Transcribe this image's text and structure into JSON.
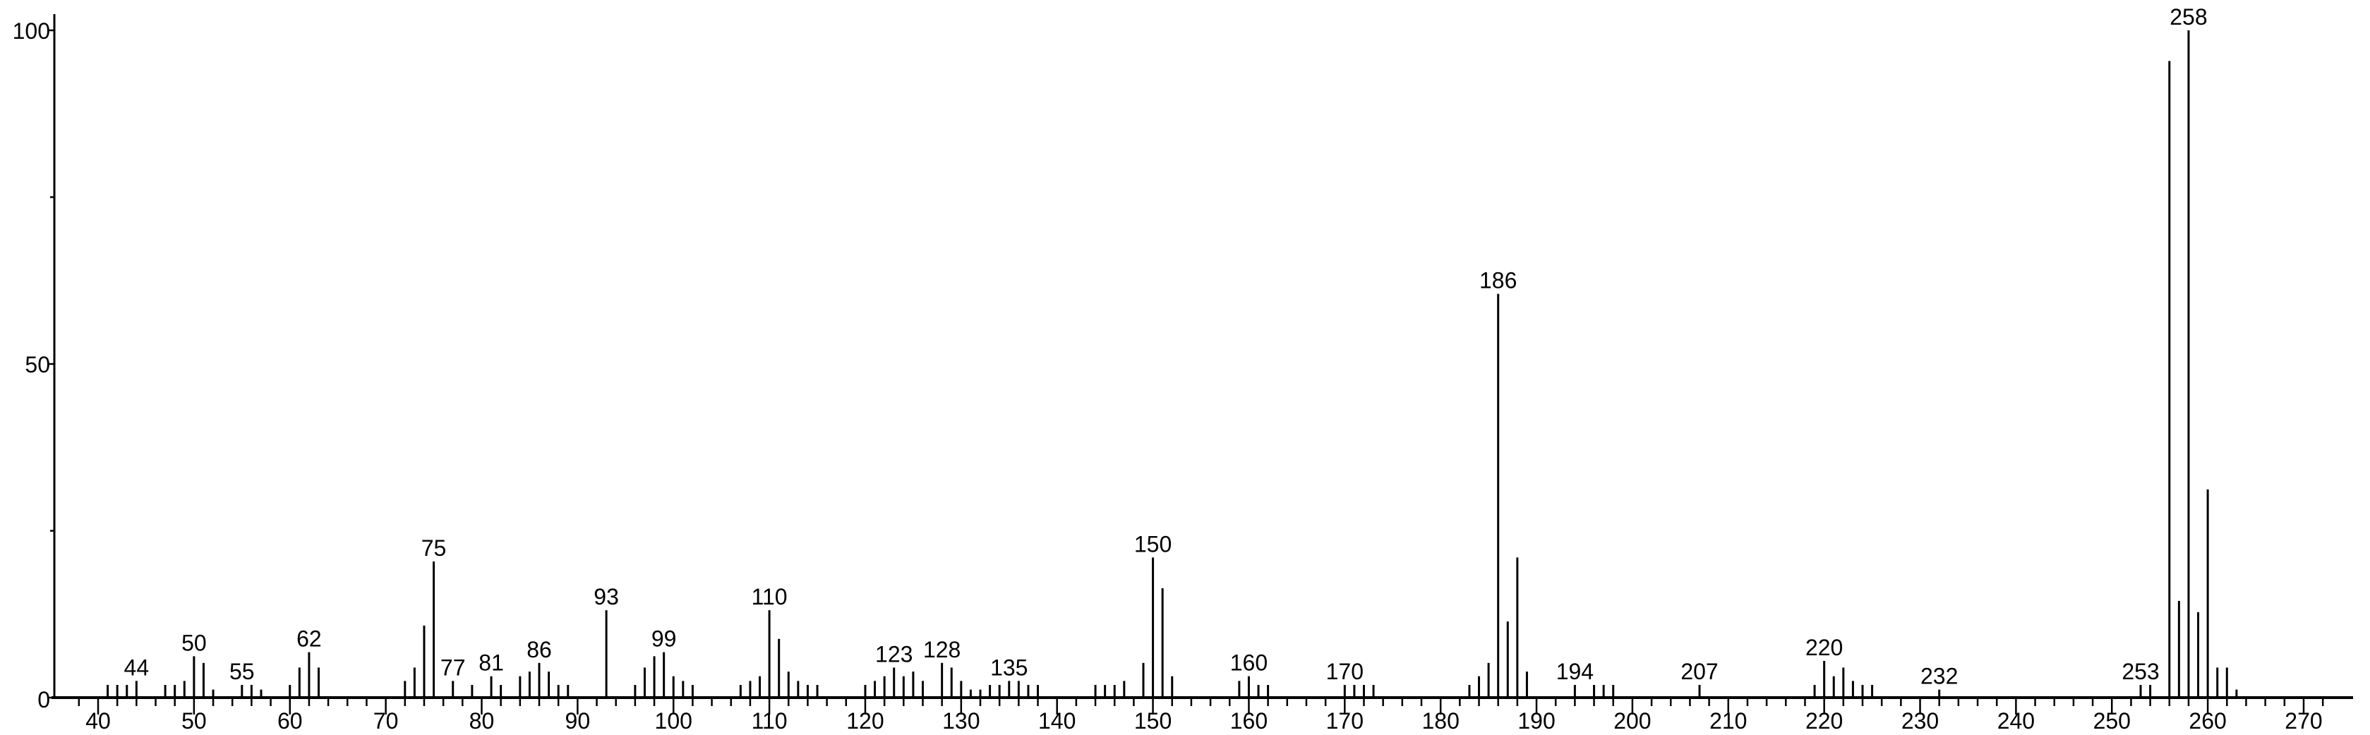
{
  "chart_data": {
    "type": "bar",
    "subtype": "stick-spectrum",
    "title": "",
    "xlabel": "",
    "ylabel": "",
    "xlim": [
      36,
      273
    ],
    "ylim": [
      0,
      100
    ],
    "x_ticks": [
      40,
      50,
      60,
      70,
      80,
      90,
      100,
      110,
      120,
      130,
      140,
      150,
      160,
      170,
      180,
      190,
      200,
      210,
      220,
      230,
      240,
      250,
      260,
      270
    ],
    "y_ticks": [
      0,
      50,
      100
    ],
    "y_minor_ticks": [
      25,
      75
    ],
    "grid": false,
    "color": "#000000",
    "peaks": [
      [
        41,
        1.9
      ],
      [
        42,
        1.9
      ],
      [
        43,
        1.9
      ],
      [
        44,
        2.5
      ],
      [
        47,
        1.9
      ],
      [
        48,
        1.9
      ],
      [
        49,
        2.5
      ],
      [
        50,
        6.2
      ],
      [
        51,
        5.2
      ],
      [
        52,
        1.2
      ],
      [
        55,
        1.9
      ],
      [
        56,
        1.9
      ],
      [
        57,
        1.2
      ],
      [
        60,
        1.9
      ],
      [
        61,
        4.5
      ],
      [
        62,
        6.8
      ],
      [
        63,
        4.5
      ],
      [
        72,
        2.5
      ],
      [
        73,
        4.5
      ],
      [
        74,
        10.8
      ],
      [
        75,
        20.4
      ],
      [
        77,
        2.5
      ],
      [
        79,
        1.9
      ],
      [
        81,
        3.2
      ],
      [
        82,
        1.9
      ],
      [
        84,
        3.2
      ],
      [
        85,
        3.9
      ],
      [
        86,
        5.2
      ],
      [
        87,
        3.9
      ],
      [
        88,
        1.9
      ],
      [
        89,
        1.9
      ],
      [
        93,
        13.1
      ],
      [
        96,
        1.9
      ],
      [
        97,
        4.5
      ],
      [
        98,
        6.2
      ],
      [
        99,
        6.8
      ],
      [
        100,
        3.2
      ],
      [
        101,
        2.5
      ],
      [
        102,
        1.9
      ],
      [
        107,
        1.9
      ],
      [
        108,
        2.5
      ],
      [
        109,
        3.2
      ],
      [
        110,
        13.1
      ],
      [
        111,
        8.8
      ],
      [
        112,
        3.9
      ],
      [
        113,
        2.5
      ],
      [
        114,
        1.9
      ],
      [
        115,
        1.9
      ],
      [
        120,
        1.9
      ],
      [
        121,
        2.5
      ],
      [
        122,
        3.2
      ],
      [
        123,
        4.5
      ],
      [
        124,
        3.2
      ],
      [
        125,
        3.9
      ],
      [
        126,
        2.5
      ],
      [
        128,
        5.2
      ],
      [
        129,
        4.5
      ],
      [
        130,
        2.5
      ],
      [
        131,
        1.2
      ],
      [
        132,
        1.2
      ],
      [
        133,
        1.9
      ],
      [
        134,
        1.9
      ],
      [
        135,
        2.5
      ],
      [
        136,
        2.5
      ],
      [
        137,
        1.9
      ],
      [
        138,
        1.9
      ],
      [
        144,
        1.9
      ],
      [
        145,
        1.9
      ],
      [
        146,
        1.9
      ],
      [
        147,
        2.5
      ],
      [
        149,
        5.2
      ],
      [
        150,
        21.0
      ],
      [
        151,
        16.4
      ],
      [
        152,
        3.2
      ],
      [
        159,
        2.5
      ],
      [
        160,
        3.2
      ],
      [
        161,
        1.9
      ],
      [
        162,
        1.9
      ],
      [
        170,
        1.9
      ],
      [
        171,
        1.9
      ],
      [
        172,
        1.9
      ],
      [
        173,
        1.9
      ],
      [
        183,
        1.9
      ],
      [
        184,
        3.2
      ],
      [
        185,
        5.2
      ],
      [
        186,
        60.5
      ],
      [
        187,
        11.4
      ],
      [
        188,
        21.0
      ],
      [
        189,
        3.9
      ],
      [
        194,
        1.9
      ],
      [
        196,
        1.9
      ],
      [
        197,
        1.9
      ],
      [
        198,
        1.9
      ],
      [
        207,
        1.9
      ],
      [
        219,
        1.9
      ],
      [
        220,
        5.5
      ],
      [
        221,
        3.2
      ],
      [
        222,
        4.5
      ],
      [
        223,
        2.5
      ],
      [
        224,
        1.9
      ],
      [
        225,
        1.9
      ],
      [
        232,
        1.2
      ],
      [
        253,
        1.9
      ],
      [
        254,
        1.9
      ],
      [
        256,
        95.4
      ],
      [
        257,
        14.5
      ],
      [
        258,
        100
      ],
      [
        259,
        12.8
      ],
      [
        260,
        31.2
      ],
      [
        261,
        4.5
      ],
      [
        262,
        4.5
      ],
      [
        263,
        1.2
      ]
    ],
    "labeled_peaks": [
      "44",
      "50",
      "55",
      "62",
      "75",
      "77",
      "81",
      "86",
      "93",
      "99",
      "110",
      "123",
      "128",
      "135",
      "150",
      "160",
      "170",
      "186",
      "194",
      "207",
      "220",
      "232",
      "253",
      "258"
    ]
  }
}
